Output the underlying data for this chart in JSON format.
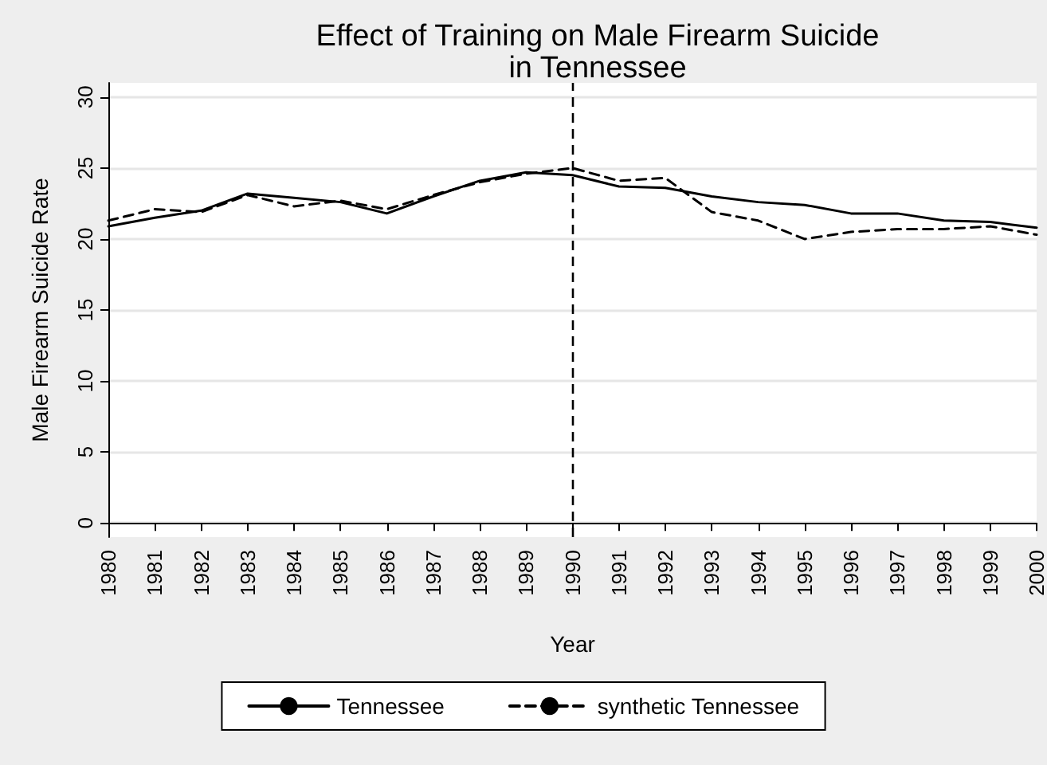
{
  "chart_data": {
    "type": "line",
    "title": "Effect of Training on Male Firearm Suicide\nin Tennessee",
    "xlabel": "Year",
    "ylabel": "Male Firearm Suicide Rate",
    "categories": [
      "1980",
      "1981",
      "1982",
      "1983",
      "1984",
      "1985",
      "1986",
      "1987",
      "1988",
      "1989",
      "1990",
      "1991",
      "1992",
      "1993",
      "1994",
      "1995",
      "1996",
      "1997",
      "1998",
      "1999",
      "2000"
    ],
    "series": [
      {
        "name": "Tennessee",
        "color": "#000000",
        "line_style": "solid",
        "values": [
          20.9,
          21.5,
          22.0,
          23.2,
          22.9,
          22.6,
          21.8,
          23.0,
          24.1,
          24.7,
          24.5,
          23.7,
          23.6,
          23.0,
          22.6,
          22.4,
          21.8,
          21.8,
          21.3,
          21.2,
          20.8
        ]
      },
      {
        "name": "synthetic Tennessee",
        "color": "#000000",
        "line_style": "dashed",
        "values": [
          21.3,
          22.1,
          21.9,
          23.1,
          22.3,
          22.7,
          22.1,
          23.1,
          24.0,
          24.6,
          25.0,
          24.1,
          24.3,
          21.9,
          21.3,
          20.0,
          20.5,
          20.7,
          20.7,
          20.9,
          20.3
        ]
      }
    ],
    "ylim": [
      -1,
      31
    ],
    "yticks": [
      0,
      5,
      10,
      15,
      20,
      25,
      30
    ],
    "grid": "y",
    "legend": "bottom",
    "marker": "none",
    "ref_lines": [
      {
        "axis": "x",
        "value": "1990",
        "line_style": "dashed",
        "color": "#000000"
      }
    ]
  }
}
